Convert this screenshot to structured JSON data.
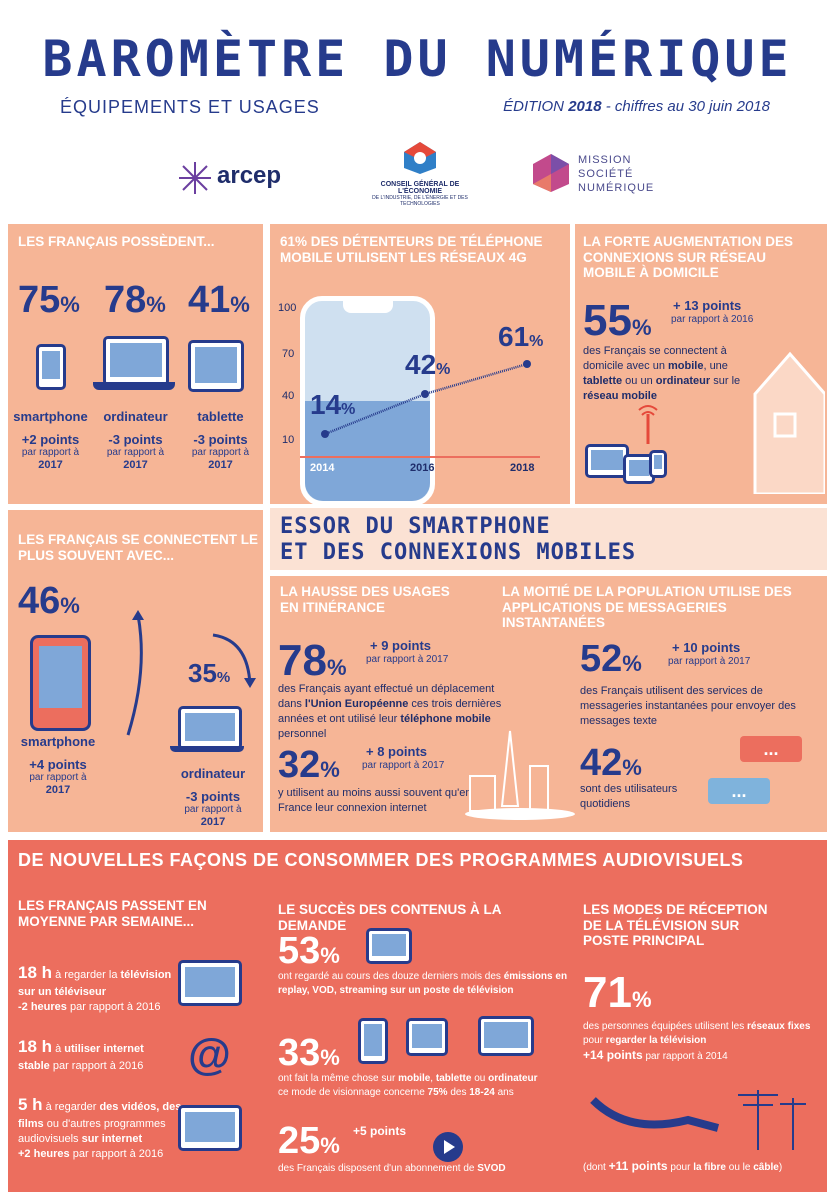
{
  "header": {
    "title": "BAROMÈTRE DU NUMÉRIQUE",
    "subtitle": "ÉQUIPEMENTS ET USAGES",
    "edition_label": "ÉDITION",
    "edition_year": "2018",
    "edition_suffix": " - chiffres au 30 juin 2018"
  },
  "logos": {
    "arcep": "arcep",
    "cge_line1": "CONSEIL GÉNÉRAL DE L'ÉCONOMIE",
    "cge_line2": "DE L'INDUSTRIE, DE L'ÉNERGIE ET DES TECHNOLOGIES",
    "msn_line1": "MISSION",
    "msn_line2": "SOCIÉTÉ",
    "msn_line3": "NUMÉRIQUE"
  },
  "possedent": {
    "heading": "LES FRANÇAIS POSSÈDENT...",
    "items": [
      {
        "value": "75",
        "pct": "%",
        "label": "smartphone",
        "delta": "+2 points",
        "ref1": "par rapport à",
        "ref2": "2017"
      },
      {
        "value": "78",
        "pct": "%",
        "label": "ordinateur",
        "delta": "-3 points",
        "ref1": "par rapport à",
        "ref2": "2017"
      },
      {
        "value": "41",
        "pct": "%",
        "label": "tablette",
        "delta": "-3 points",
        "ref1": "par rapport à",
        "ref2": "2017"
      }
    ]
  },
  "reseau4g": {
    "heading": "61% DES DÉTENTEURS DE TÉLÉPHONE MOBILE UTILISENT LES RÉSEAUX 4G",
    "ticks": [
      "100",
      "70",
      "40",
      "10"
    ],
    "years": [
      "2014",
      "2016",
      "2018"
    ],
    "values": [
      {
        "value": "14",
        "pct": "%"
      },
      {
        "value": "42",
        "pct": "%"
      },
      {
        "value": "61",
        "pct": "%"
      }
    ]
  },
  "domicile": {
    "heading": "LA FORTE AUGMENTATION DES CONNEXIONS SUR RÉSEAU MOBILE À DOMICILE",
    "value": "55",
    "pct": "%",
    "delta": "+ 13 points",
    "ref": "par rapport à 2016",
    "text_a": "des Français se connectent à domicile avec un ",
    "text_b": "mobile",
    "text_c": ", une ",
    "text_d": "tablette",
    "text_e": " ou un ",
    "text_f": "ordinateur",
    "text_g": " sur le ",
    "text_h": "réseau mobile"
  },
  "connectent": {
    "heading": "LES FRANÇAIS SE CONNECTENT LE PLUS SOUVENT AVEC...",
    "sm_value": "46",
    "sm_pct": "%",
    "sm_label": "smartphone",
    "sm_delta": "+4 points",
    "sm_ref1": "par rapport à",
    "sm_ref2": "2017",
    "pc_value": "35",
    "pc_pct": "%",
    "pc_label": "ordinateur",
    "pc_delta": "-3 points",
    "pc_ref1": "par rapport à",
    "pc_ref2": "2017"
  },
  "essor": {
    "line1": "ESSOR DU SMARTPHONE",
    "line2": "ET DES CONNEXIONS MOBILES"
  },
  "itinerance": {
    "heading": "LA HAUSSE DES USAGES EN ITINÉRANCE",
    "v1": "78",
    "pct": "%",
    "d1": "+ 9 points",
    "r1": "par rapport à 2017",
    "t1a": "des Français ayant effectué un déplacement dans ",
    "t1b": "l'Union Européenne",
    "t1c": " ces trois dernières années et ont utilisé leur ",
    "t1d": "téléphone mobile",
    "t1e": " personnel",
    "v2": "32",
    "d2": "+ 8 points",
    "r2": "par rapport à 2017",
    "t2": "y utilisent au moins aussi souvent qu'en France leur connexion internet"
  },
  "messagerie": {
    "heading": "LA MOITIÉ DE LA POPULATION UTILISE DES APPLICATIONS DE MESSAGERIES INSTANTANÉES",
    "v1": "52",
    "pct": "%",
    "d1": "+ 10 points",
    "r1": "par rapport à 2017",
    "t1": "des Français utilisent des services de messageries instantanées pour envoyer des messages texte",
    "v2": "42",
    "t2": "sont des utilisateurs quotidiens",
    "bubble": "..."
  },
  "audiovisuel": {
    "heading": "DE NOUVELLES FAÇONS DE CONSOMMER DES PROGRAMMES AUDIOVISUELS",
    "semaine": {
      "heading": "LES FRANÇAIS PASSENT EN MOYENNE PAR SEMAINE...",
      "i1_v": "18 h",
      "i1_a": " à regarder la ",
      "i1_b": "télévision sur un téléviseur",
      "i1_c": "-2 heures",
      "i1_d": " par rapport à 2016",
      "i2_v": "18 h",
      "i2_a": " à ",
      "i2_b": "utiliser internet",
      "i2_c": "stable",
      "i2_d": " par rapport à 2016",
      "i3_v": "5 h",
      "i3_a": " à regarder ",
      "i3_b": "des vidéos, des films",
      "i3_c": " ou d'autres programmes audiovisuels ",
      "i3_d": "sur internet",
      "i3_e": "+2 heures",
      "i3_f": " par rapport à 2016"
    },
    "demande": {
      "heading": "LE SUCCÈS DES CONTENUS À LA DEMANDE",
      "v1": "53",
      "pct": "%",
      "t1a": "ont regardé au cours des douze derniers mois des ",
      "t1b": "émissions en replay, VOD, streaming sur un poste de télévision",
      "v2": "33",
      "t2a": "ont fait la même chose sur ",
      "t2b": "mobile",
      "t2c": ", ",
      "t2d": "tablette",
      "t2e": " ou ",
      "t2f": "ordinateur",
      "t2g": "ce mode de visionnage concerne ",
      "t2h": "75%",
      "t2i": " des ",
      "t2j": "18-24",
      "t2k": " ans",
      "v3": "25",
      "d3": "+5 points",
      "t3a": "des Français disposent d'un abonnement de ",
      "t3b": "SVOD"
    },
    "reception": {
      "heading": "LES MODES DE RÉCEPTION DE LA TÉLÉVISION SUR POSTE PRINCIPAL",
      "v1": "71",
      "pct": "%",
      "t1a": "des personnes équipées utilisent les ",
      "t1b": "réseaux fixes",
      "t1c": " pour ",
      "t1d": "regarder la télévision",
      "d1": "+14 points",
      "r1": " par rapport à 2014",
      "t2a": "(dont ",
      "t2b": "+11 points",
      "t2c": " pour ",
      "t2d": "la fibre",
      "t2e": " ou le ",
      "t2f": "câble",
      "t2g": ")"
    }
  },
  "colors": {
    "navy": "#263b8c",
    "peach": "#f6b596",
    "coral": "#ec6e5e",
    "blue": "#7fa7d8"
  }
}
